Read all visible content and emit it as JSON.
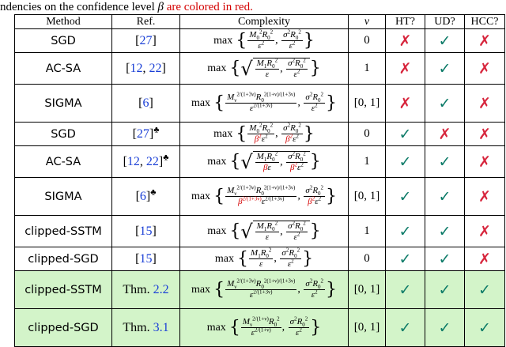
{
  "caption": {
    "before": "ndencies on the confidence level ",
    "symbol": "β",
    "after": " are colored in red."
  },
  "headers": [
    "Method",
    "Ref.",
    "Complexity",
    "ν",
    "HT?",
    "UD?",
    "HCC?"
  ],
  "glyphs": {
    "check": "✓",
    "cross": "✗",
    "club": "♣"
  },
  "rows": [
    {
      "method": "SGD",
      "ref": [
        {
          "t": "[",
          "b": false
        },
        {
          "t": "27",
          "b": true
        },
        {
          "t": "]",
          "b": false
        }
      ],
      "club": false,
      "nu": "0",
      "ht": false,
      "ud": true,
      "hcc": false
    },
    {
      "method": "AC-SA",
      "ref": [
        {
          "t": "[",
          "b": false
        },
        {
          "t": "12",
          "b": true
        },
        {
          "t": ", ",
          "b": false
        },
        {
          "t": "22",
          "b": true
        },
        {
          "t": "]",
          "b": false
        }
      ],
      "club": false,
      "nu": "1",
      "ht": false,
      "ud": true,
      "hcc": false
    },
    {
      "method": "SIGMA",
      "ref": [
        {
          "t": "[",
          "b": false
        },
        {
          "t": "6",
          "b": true
        },
        {
          "t": "]",
          "b": false
        }
      ],
      "club": false,
      "nu": "[0, 1]",
      "ht": false,
      "ud": true,
      "hcc": false
    },
    {
      "method": "SGD",
      "ref": [
        {
          "t": "[",
          "b": false
        },
        {
          "t": "27",
          "b": true
        },
        {
          "t": "]",
          "b": false
        }
      ],
      "club": true,
      "nu": "0",
      "ht": true,
      "ud": false,
      "hcc": false
    },
    {
      "method": "AC-SA",
      "ref": [
        {
          "t": "[",
          "b": false
        },
        {
          "t": "12",
          "b": true
        },
        {
          "t": ", ",
          "b": false
        },
        {
          "t": "22",
          "b": true
        },
        {
          "t": "]",
          "b": false
        }
      ],
      "club": true,
      "nu": "1",
      "ht": true,
      "ud": true,
      "hcc": false
    },
    {
      "method": "SIGMA",
      "ref": [
        {
          "t": "[",
          "b": false
        },
        {
          "t": "6",
          "b": true
        },
        {
          "t": "]",
          "b": false
        }
      ],
      "club": true,
      "nu": "[0, 1]",
      "ht": true,
      "ud": true,
      "hcc": false
    },
    {
      "method": "clipped-SSTM",
      "ref": [
        {
          "t": "[",
          "b": false
        },
        {
          "t": "15",
          "b": true
        },
        {
          "t": "]",
          "b": false
        }
      ],
      "club": false,
      "nu": "1",
      "ht": true,
      "ud": true,
      "hcc": false
    },
    {
      "method": "clipped-SGD",
      "ref": [
        {
          "t": "[",
          "b": false
        },
        {
          "t": "15",
          "b": true
        },
        {
          "t": "]",
          "b": false
        }
      ],
      "club": false,
      "nu": "0",
      "ht": true,
      "ud": true,
      "hcc": false
    },
    {
      "method": "clipped-SSTM",
      "ref": [
        {
          "t": "Thm. ",
          "b": false
        },
        {
          "t": "2.2",
          "b": true
        }
      ],
      "club": false,
      "nu": "[0, 1]",
      "ht": true,
      "ud": true,
      "hcc": true,
      "highlight": true
    },
    {
      "method": "clipped-SGD",
      "ref": [
        {
          "t": "Thm. ",
          "b": false
        },
        {
          "t": "3.1",
          "b": true
        }
      ],
      "club": false,
      "nu": "[0, 1]",
      "ht": true,
      "ud": true,
      "hcc": true,
      "highlight": true
    }
  ]
}
